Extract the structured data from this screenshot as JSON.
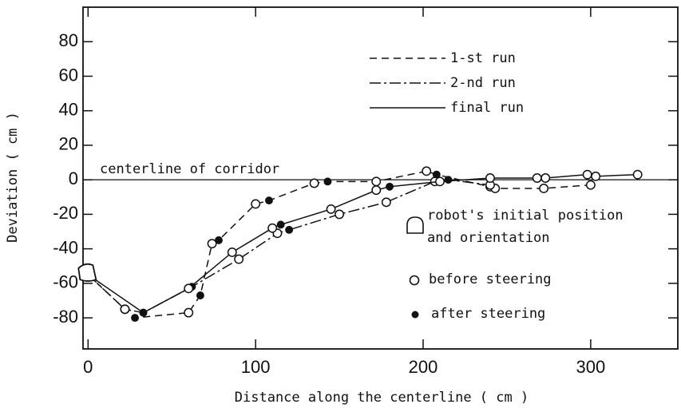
{
  "chart_data": {
    "type": "line",
    "xlabel": "Distance along the centerline ( cm )",
    "ylabel": "Deviation ( cm )",
    "centerline_label": "centerline of corridor",
    "xlim": [
      -3,
      352
    ],
    "ylim": [
      -98,
      100
    ],
    "xticks": [
      0,
      100,
      200,
      300
    ],
    "yticks": [
      -80,
      -60,
      -40,
      -20,
      0,
      20,
      40,
      60,
      80
    ],
    "robot": {
      "x": 0,
      "y": -55,
      "label": [
        "robot's initial position",
        "and orientation"
      ]
    },
    "before_label": "before steering",
    "after_label": "after steering",
    "series": [
      {
        "name": "1-st run",
        "dash": "9,6",
        "x": [
          22,
          28,
          60,
          67,
          74,
          78,
          100,
          108,
          135,
          143,
          172,
          202,
          208,
          240,
          243,
          272,
          300
        ],
        "values": [
          -75,
          -80,
          -77,
          -67,
          -37,
          -35,
          -14,
          -12,
          -2,
          -1,
          -1,
          5,
          3,
          -4,
          -5,
          -5,
          -3
        ],
        "filled": [
          false,
          true,
          false,
          true,
          false,
          true,
          false,
          true,
          false,
          true,
          false,
          false,
          true,
          false,
          false,
          false,
          false
        ]
      },
      {
        "name": "2-nd run",
        "dash": "14,4,3,4",
        "x": [
          22,
          33,
          62,
          90,
          113,
          120,
          150,
          178,
          207,
          215,
          240
        ],
        "values": [
          -75,
          -77,
          -62,
          -46,
          -31,
          -29,
          -20,
          -13,
          -1,
          0,
          -3
        ],
        "filled": [
          false,
          true,
          true,
          false,
          false,
          true,
          false,
          false,
          false,
          true,
          false
        ]
      },
      {
        "name": "final run",
        "dash": "none",
        "x": [
          33,
          60,
          86,
          110,
          115,
          145,
          172,
          180,
          210,
          240,
          268,
          273,
          298,
          303,
          328
        ],
        "values": [
          -77,
          -63,
          -42,
          -28,
          -26,
          -17,
          -6,
          -4,
          -1,
          1,
          1,
          1,
          3,
          2,
          3
        ],
        "filled": [
          true,
          false,
          false,
          false,
          true,
          false,
          false,
          true,
          false,
          false,
          false,
          false,
          false,
          false,
          false
        ]
      }
    ]
  }
}
